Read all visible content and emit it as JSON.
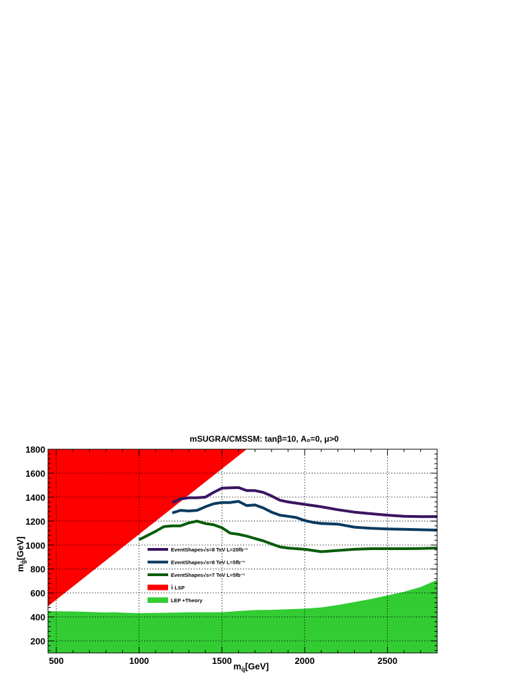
{
  "chart_data": {
    "type": "line",
    "title": "mSUGRA/CMSSM: tanβ=10, A₀=0, μ>0",
    "xlabel": "m_q̃[GeV]",
    "ylabel": "m_g̃[GeV]",
    "xlim": [
      450,
      2800
    ],
    "ylim": [
      100,
      1800
    ],
    "xticks": [
      500,
      1000,
      1500,
      2000,
      2500
    ],
    "yticks": [
      200,
      400,
      600,
      800,
      1000,
      1200,
      1400,
      1600,
      1800
    ],
    "grid": true,
    "legend_position": "center-left",
    "series": [
      {
        "name": "EventShapes√s=8 TeV L=20fb⁻¹",
        "kind": "line",
        "color": "#3b1460",
        "x": [
          1200,
          1250,
          1300,
          1350,
          1400,
          1450,
          1500,
          1550,
          1600,
          1650,
          1700,
          1750,
          1800,
          1850,
          1900,
          2000,
          2100,
          2200,
          2300,
          2400,
          2500,
          2600,
          2700,
          2800
        ],
        "y": [
          1355,
          1385,
          1395,
          1395,
          1400,
          1440,
          1475,
          1478,
          1480,
          1455,
          1455,
          1440,
          1410,
          1375,
          1360,
          1340,
          1320,
          1295,
          1275,
          1262,
          1250,
          1240,
          1238,
          1238
        ]
      },
      {
        "name": "EventShapes√s=8 TeV L=5fb⁻¹",
        "kind": "line",
        "color": "#0a3a60",
        "x": [
          1200,
          1250,
          1300,
          1350,
          1400,
          1450,
          1500,
          1550,
          1600,
          1650,
          1700,
          1750,
          1800,
          1850,
          1900,
          1950,
          2000,
          2050,
          2100,
          2200,
          2300,
          2400,
          2500,
          2600,
          2700,
          2800
        ],
        "y": [
          1268,
          1290,
          1285,
          1290,
          1320,
          1345,
          1355,
          1355,
          1365,
          1330,
          1335,
          1310,
          1275,
          1250,
          1240,
          1230,
          1205,
          1190,
          1180,
          1175,
          1150,
          1140,
          1135,
          1132,
          1128,
          1125
        ]
      },
      {
        "name": "EventShapes√s=7 TeV L=5fb⁻¹",
        "kind": "line",
        "color": "#0b5c0b",
        "x": [
          1000,
          1050,
          1100,
          1150,
          1200,
          1250,
          1300,
          1350,
          1400,
          1450,
          1500,
          1550,
          1600,
          1650,
          1700,
          1750,
          1800,
          1850,
          1900,
          1950,
          2000,
          2100,
          2200,
          2300,
          2400,
          2500,
          2600,
          2700,
          2800
        ],
        "y": [
          1045,
          1080,
          1115,
          1155,
          1160,
          1160,
          1185,
          1200,
          1180,
          1170,
          1145,
          1100,
          1090,
          1075,
          1055,
          1035,
          1010,
          985,
          975,
          970,
          965,
          945,
          955,
          965,
          970,
          970,
          970,
          972,
          975
        ]
      },
      {
        "name": "τ̃ LSP",
        "kind": "area",
        "color": "#ff0000",
        "x": [
          450,
          450,
          1650,
          450
        ],
        "y": [
          490,
          1800,
          1800,
          490
        ]
      },
      {
        "name": "LEP +Theory",
        "kind": "area",
        "color": "#33cc33",
        "x": [
          450,
          500,
          600,
          700,
          800,
          850,
          900,
          950,
          1000,
          1100,
          1200,
          1300,
          1400,
          1500,
          1600,
          1700,
          1800,
          1900,
          2000,
          2100,
          2200,
          2300,
          2400,
          2500,
          2600,
          2700,
          2800
        ],
        "y": [
          450,
          448,
          446,
          442,
          438,
          440,
          436,
          434,
          432,
          434,
          436,
          440,
          440,
          440,
          450,
          458,
          460,
          465,
          470,
          480,
          500,
          525,
          550,
          580,
          610,
          650,
          710
        ]
      }
    ]
  }
}
